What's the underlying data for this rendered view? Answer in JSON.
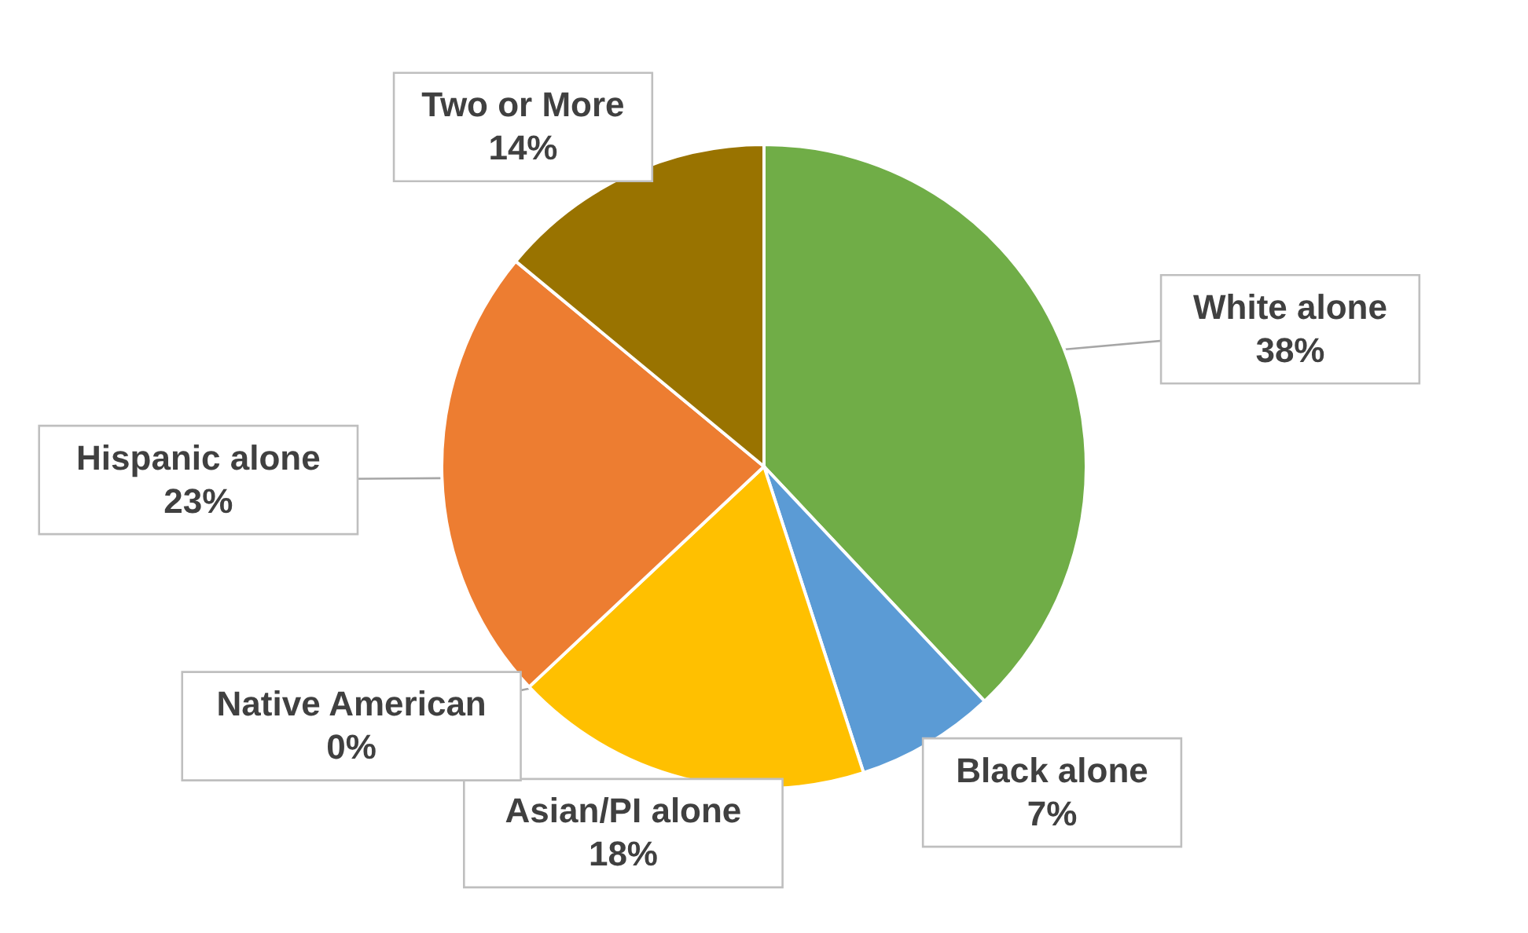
{
  "chart_data": {
    "type": "pie",
    "categories": [
      "White alone",
      "Black alone",
      "Asian/PI alone",
      "Native American",
      "Hispanic alone",
      "Two or More"
    ],
    "values": [
      38,
      7,
      18,
      0,
      23,
      14
    ],
    "colors": [
      "#70ad47",
      "#5b9bd5",
      "#ffc000",
      "#a5a5a5",
      "#ed7d31",
      "#997300"
    ],
    "value_labels": [
      "38%",
      "7%",
      "18%",
      "0%",
      "23%",
      "14%"
    ],
    "legend": false
  }
}
